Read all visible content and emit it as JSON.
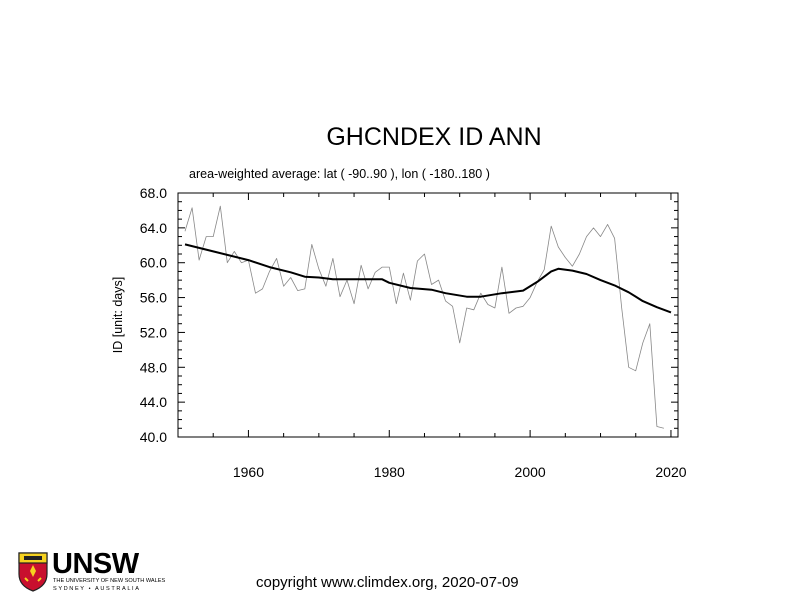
{
  "chart_data": {
    "type": "line",
    "title": "GHCNDEX ID ANN",
    "subtitle": "area-weighted average: lat ( -90..90 ), lon ( -180..180 )",
    "xlabel": "",
    "ylabel": "ID [unit: days]",
    "xlim": [
      1950,
      2021
    ],
    "ylim": [
      40.0,
      68.0
    ],
    "xticks": [
      1960,
      1980,
      2000,
      2020
    ],
    "xticks_labels": [
      "1960",
      "1980",
      "2000",
      "2020"
    ],
    "yticks": [
      40.0,
      44.0,
      48.0,
      52.0,
      56.0,
      60.0,
      64.0,
      68.0
    ],
    "yticks_labels": [
      "40.0",
      "44.0",
      "48.0",
      "52.0",
      "56.0",
      "60.0",
      "64.0",
      "68.0"
    ],
    "grid": false,
    "series": [
      {
        "name": "",
        "style": "thin-gray",
        "color": "#888888",
        "x": [
          1951,
          1952,
          1953,
          1954,
          1955,
          1956,
          1957,
          1958,
          1959,
          1960,
          1961,
          1962,
          1963,
          1964,
          1965,
          1966,
          1967,
          1968,
          1969,
          1970,
          1971,
          1972,
          1973,
          1974,
          1975,
          1976,
          1977,
          1978,
          1979,
          1980,
          1981,
          1982,
          1983,
          1984,
          1985,
          1986,
          1987,
          1988,
          1989,
          1990,
          1991,
          1992,
          1993,
          1994,
          1995,
          1996,
          1997,
          1998,
          1999,
          2000,
          2001,
          2002,
          2003,
          2004,
          2005,
          2006,
          2007,
          2008,
          2009,
          2010,
          2011,
          2012,
          2013,
          2014,
          2015,
          2016,
          2017,
          2018,
          2019
        ],
        "y": [
          63.6,
          66.3,
          60.3,
          63.0,
          63.0,
          66.5,
          60.0,
          61.3,
          60.0,
          60.3,
          56.5,
          57.0,
          59.0,
          60.5,
          57.3,
          58.3,
          56.8,
          57.0,
          62.1,
          59.3,
          57.3,
          60.5,
          56.1,
          58.0,
          55.3,
          59.7,
          57.0,
          58.9,
          59.5,
          59.5,
          55.3,
          58.8,
          55.7,
          60.2,
          61.0,
          57.5,
          58.0,
          55.6,
          55.0,
          50.8,
          54.8,
          54.6,
          56.5,
          55.2,
          54.8,
          59.5,
          54.2,
          54.8,
          55.0,
          56.0,
          57.8,
          59.2,
          64.2,
          61.8,
          60.6,
          59.6,
          61.0,
          63.0,
          64.0,
          63.0,
          64.4,
          62.8,
          54.8,
          48.0,
          47.6,
          50.8,
          53.0,
          41.2,
          41.0
        ]
      },
      {
        "name": "",
        "style": "thick-black",
        "color": "#000000",
        "x": [
          1951,
          1955,
          1960,
          1963,
          1966,
          1968,
          1970,
          1972,
          1975,
          1979,
          1980,
          1983,
          1986,
          1988,
          1991,
          1993,
          1996,
          1999,
          2001,
          2003,
          2004,
          2006,
          2008,
          2010,
          2012,
          2014,
          2016,
          2018,
          2020
        ],
        "y": [
          62.1,
          61.3,
          60.3,
          59.5,
          58.9,
          58.4,
          58.3,
          58.1,
          58.1,
          58.1,
          57.7,
          57.1,
          56.9,
          56.5,
          56.1,
          56.1,
          56.5,
          56.8,
          57.8,
          59.0,
          59.3,
          59.1,
          58.7,
          58.0,
          57.4,
          56.6,
          55.6,
          54.9,
          54.3
        ]
      }
    ]
  },
  "footer": {
    "copyright": "copyright www.climdex.org, 2020-07-09",
    "logo_text": "UNSW",
    "logo_line1": "THE UNIVERSITY OF NEW SOUTH WALES",
    "logo_line2": "SYDNEY • AUSTRALIA",
    "logo_colors": {
      "crest_red": "#c8102e",
      "crest_yellow": "#f6d21f",
      "crest_dark": "#222222"
    }
  }
}
